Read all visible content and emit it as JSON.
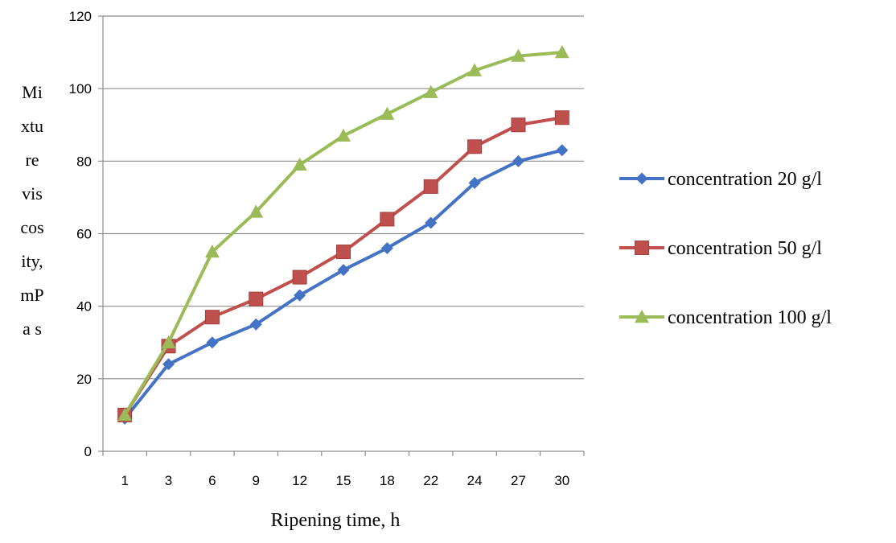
{
  "chart_data": {
    "type": "line",
    "xlabel": "Ripening time, h",
    "ylabel_lines": [
      "Mi",
      "xtu",
      "re",
      "vis",
      "cos",
      "ity,",
      "mP",
      "a s"
    ],
    "categories": [
      "1",
      "3",
      "6",
      "9",
      "12",
      "15",
      "18",
      "22",
      "24",
      "27",
      "30"
    ],
    "yticks": [
      "0",
      "20",
      "40",
      "60",
      "80",
      "100",
      "120"
    ],
    "ylim": [
      0,
      120
    ],
    "grid": true,
    "legend_position": "right",
    "series": [
      {
        "name": "concentration 20 g/l",
        "color": "#4472C4",
        "marker": "diamond",
        "values": [
          9,
          24,
          30,
          35,
          43,
          50,
          56,
          63,
          74,
          80,
          83
        ]
      },
      {
        "name": "concentration 50 g/l",
        "color": "#C0504D",
        "marker": "square",
        "values": [
          10,
          29,
          37,
          42,
          48,
          55,
          64,
          73,
          84,
          90,
          92
        ]
      },
      {
        "name": "concentration 100 g/l",
        "color": "#9BBB59",
        "marker": "triangle",
        "values": [
          10,
          30,
          55,
          66,
          79,
          87,
          93,
          99,
          105,
          109,
          110
        ]
      }
    ]
  }
}
